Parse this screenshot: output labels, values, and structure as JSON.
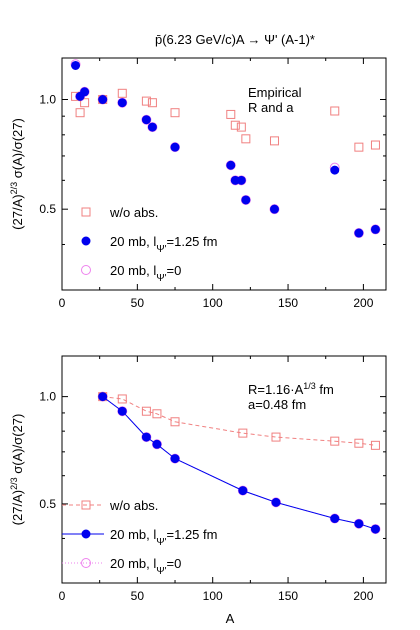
{
  "figure_title": "p̄(6.23 GeV/c)A → Ψ' (A-1)*",
  "ylabel": "(27/A)^{2/3} σ(A)/σ(27)",
  "xlabel": "A",
  "colors": {
    "wo_abs": "#f08080",
    "absorb": "#0000ee",
    "absorb_zero": "#ee82ee",
    "axis": "#000000"
  },
  "chart_data": [
    {
      "type": "scatter",
      "title": "",
      "xlim": [
        0,
        215
      ],
      "ylim": [
        0.3,
        1.3
      ],
      "log_y": true,
      "x_ticks": [
        0,
        50,
        100,
        150,
        200
      ],
      "y_ticks": [
        0.5,
        1.0
      ],
      "y_tick_labels": [
        "0.5",
        "1.0"
      ],
      "annotation": [
        "Empirical",
        "R and a"
      ],
      "legend_position": "lower-left",
      "series": [
        {
          "name": "w/o abs.",
          "marker": "open-square",
          "line": "none",
          "color": "#f08080",
          "points": [
            [
              9,
              1.02
            ],
            [
              12,
              0.92
            ],
            [
              15,
              0.98
            ],
            [
              27,
              1.0
            ],
            [
              40,
              1.04
            ],
            [
              56,
              0.99
            ],
            [
              60,
              0.98
            ],
            [
              75,
              0.92
            ],
            [
              112,
              0.91
            ],
            [
              115,
              0.85
            ],
            [
              119,
              0.84
            ],
            [
              122,
              0.78
            ],
            [
              141,
              0.77
            ],
            [
              181,
              0.93
            ],
            [
              197,
              0.74
            ],
            [
              208,
              0.75
            ]
          ]
        },
        {
          "name": "20 mb, l_Ψ'=1.25 fm",
          "marker": "filled-circle",
          "line": "none",
          "color": "#0000ee",
          "points": [
            [
              9,
              1.24
            ],
            [
              12,
              1.02
            ],
            [
              15,
              1.05
            ],
            [
              27,
              1.0
            ],
            [
              40,
              0.98
            ],
            [
              56,
              0.88
            ],
            [
              60,
              0.84
            ],
            [
              75,
              0.74
            ],
            [
              112,
              0.66
            ],
            [
              115,
              0.6
            ],
            [
              119,
              0.6
            ],
            [
              122,
              0.53
            ],
            [
              141,
              0.5
            ],
            [
              181,
              0.64
            ],
            [
              197,
              0.43
            ],
            [
              208,
              0.44
            ]
          ]
        },
        {
          "name": "20 mb, l_Ψ'=0",
          "marker": "open-circle",
          "line": "none",
          "color": "#ee82ee",
          "points": [
            [
              9,
              1.25
            ],
            [
              12,
              1.02
            ],
            [
              15,
              1.05
            ],
            [
              27,
              1.0
            ],
            [
              40,
              0.98
            ],
            [
              56,
              0.88
            ],
            [
              60,
              0.84
            ],
            [
              75,
              0.74
            ],
            [
              112,
              0.66
            ],
            [
              115,
              0.6
            ],
            [
              119,
              0.6
            ],
            [
              122,
              0.53
            ],
            [
              141,
              0.5
            ],
            [
              181,
              0.65
            ],
            [
              197,
              0.43
            ],
            [
              208,
              0.44
            ]
          ]
        }
      ]
    },
    {
      "type": "line",
      "title": "",
      "xlim": [
        0,
        215
      ],
      "ylim": [
        0.3,
        1.3
      ],
      "log_y": true,
      "x_ticks": [
        0,
        50,
        100,
        150,
        200
      ],
      "y_ticks": [
        0.5,
        1.0
      ],
      "y_tick_labels": [
        "0.5",
        "1.0"
      ],
      "annotation": [
        "R=1.16·A^{1/3} fm",
        "a=0.48 fm"
      ],
      "legend_position": "lower-left",
      "series": [
        {
          "name": "w/o abs.",
          "marker": "open-square",
          "line": "dashed",
          "color": "#f08080",
          "points": [
            [
              27,
              1.0
            ],
            [
              40,
              0.985
            ],
            [
              56,
              0.91
            ],
            [
              63,
              0.895
            ],
            [
              75,
              0.85
            ],
            [
              120,
              0.79
            ],
            [
              142,
              0.77
            ],
            [
              181,
              0.75
            ],
            [
              197,
              0.74
            ],
            [
              208,
              0.73
            ]
          ]
        },
        {
          "name": "20 mb, l_Ψ'=1.25 fm",
          "marker": "filled-circle",
          "line": "solid",
          "color": "#0000ee",
          "points": [
            [
              27,
              1.0
            ],
            [
              40,
              0.91
            ],
            [
              56,
              0.77
            ],
            [
              63,
              0.735
            ],
            [
              75,
              0.67
            ],
            [
              120,
              0.545
            ],
            [
              142,
              0.505
            ],
            [
              181,
              0.455
            ],
            [
              197,
              0.44
            ],
            [
              208,
              0.425
            ]
          ]
        },
        {
          "name": "20 mb, l_Ψ'=0",
          "marker": "open-circle",
          "line": "dotted",
          "color": "#ee82ee",
          "points": [
            [
              27,
              1.0
            ],
            [
              40,
              0.91
            ],
            [
              56,
              0.77
            ],
            [
              63,
              0.735
            ],
            [
              75,
              0.67
            ],
            [
              120,
              0.545
            ],
            [
              142,
              0.505
            ],
            [
              181,
              0.455
            ],
            [
              197,
              0.44
            ],
            [
              208,
              0.425
            ]
          ]
        }
      ]
    }
  ]
}
